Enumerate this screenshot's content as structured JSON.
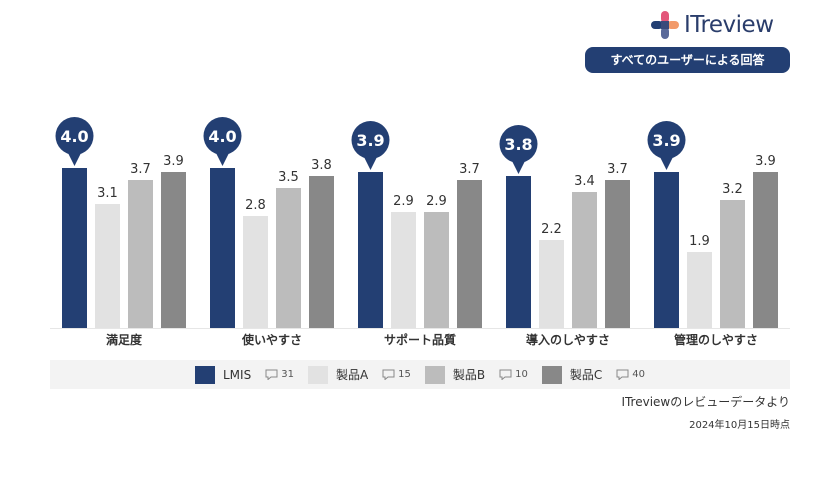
{
  "brand": {
    "name": "ITreview",
    "primary": "#233f73",
    "accent": "#e3567a"
  },
  "badge_text": "すべてのユーザーによる回答",
  "chart_data": {
    "type": "bar",
    "categories": [
      "満足度",
      "使いやすさ",
      "サポート品質",
      "導入のしやすさ",
      "管理のしやすさ"
    ],
    "series": [
      {
        "name": "LMIS",
        "review_count": "31",
        "color": "#233f73",
        "values": [
          4.0,
          4.0,
          3.9,
          3.8,
          3.9
        ]
      },
      {
        "name": "製品A",
        "review_count": "15",
        "color": "#e2e2e2",
        "values": [
          3.1,
          2.8,
          2.9,
          2.2,
          1.9
        ]
      },
      {
        "name": "製品B",
        "review_count": "10",
        "color": "#bcbcbc",
        "values": [
          3.7,
          3.5,
          2.9,
          3.4,
          3.2
        ]
      },
      {
        "name": "製品C",
        "review_count": "40",
        "color": "#888888",
        "values": [
          3.9,
          3.8,
          3.7,
          3.7,
          3.9
        ]
      }
    ],
    "ylim": [
      0,
      4
    ],
    "title": "",
    "xlabel": "",
    "ylabel": "",
    "legend": "bottom"
  },
  "footer": {
    "source": "ITreviewのレビューデータより",
    "date": "2024年10月15日時点"
  }
}
